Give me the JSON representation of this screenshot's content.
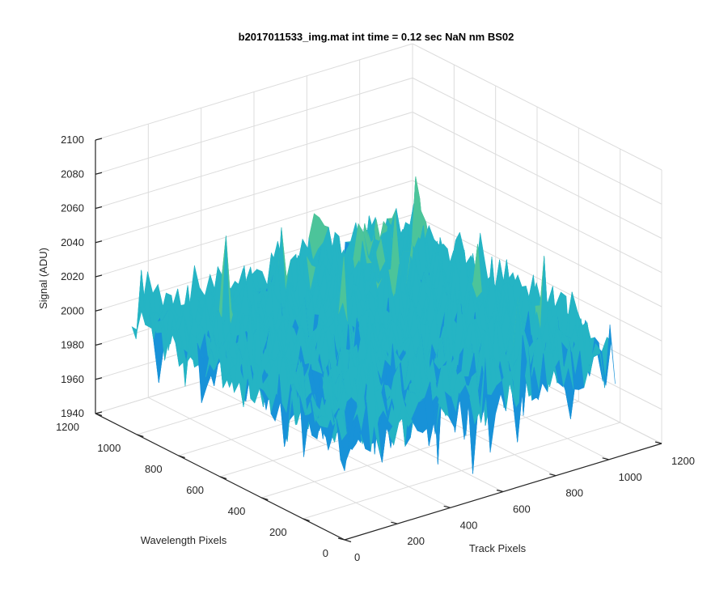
{
  "chart_data": {
    "type": "surface",
    "title": "b2017011533_img.mat int time = 0.12 sec  NaN nm BS02",
    "xlabel": "Track Pixels",
    "ylabel": "Wavelength Pixels",
    "zlabel": "Signal (ADU)",
    "xlim": [
      0,
      1200
    ],
    "ylim": [
      0,
      1200
    ],
    "zlim": [
      1940,
      2100
    ],
    "xticks": [
      "0",
      "200",
      "400",
      "600",
      "800",
      "1000",
      "1200"
    ],
    "yticks": [
      "0",
      "200",
      "400",
      "600",
      "800",
      "1000",
      "1200"
    ],
    "zticks": [
      "1940",
      "1960",
      "1980",
      "2000",
      "2020",
      "2040",
      "2060",
      "2080",
      "2100"
    ],
    "data_extent": {
      "x": [
        0,
        1024
      ],
      "y": [
        0,
        1024
      ]
    },
    "signal_summary": {
      "mean": 2002,
      "min": 1945,
      "max": 2085,
      "noise_sd": 12
    },
    "colormap": [
      "#1060d8",
      "#1892d8",
      "#25b4c4",
      "#4cc49a",
      "#8ccb6c",
      "#c8c04c"
    ],
    "grid": true,
    "view": "3d-isometric"
  }
}
